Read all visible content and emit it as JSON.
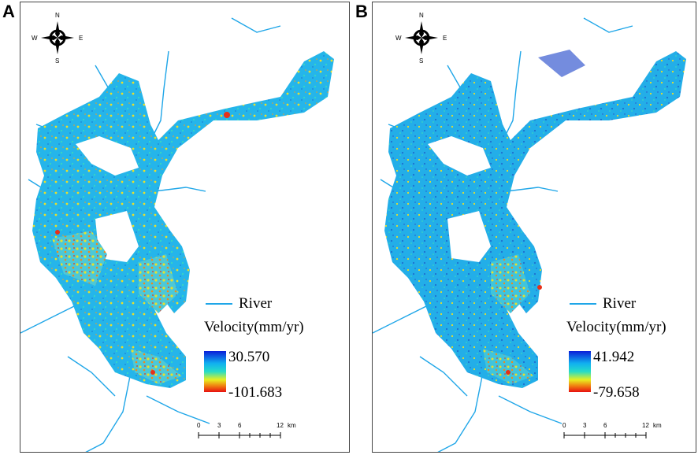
{
  "panels": [
    {
      "letter": "A",
      "compass": {
        "n": "N",
        "s": "S",
        "w": "W",
        "e": "E"
      },
      "legend": {
        "river_label": "River",
        "title": "Velocity(mm/yr)",
        "max": "30.570",
        "min": "-101.683"
      },
      "scale": {
        "ticks": [
          "0",
          "3",
          "6",
          "12"
        ],
        "unit": "km"
      }
    },
    {
      "letter": "B",
      "compass": {
        "n": "N",
        "s": "S",
        "w": "W",
        "e": "E"
      },
      "legend": {
        "river_label": "River",
        "title": "Velocity(mm/yr)",
        "max": "41.942",
        "min": "-79.658"
      },
      "scale": {
        "ticks": [
          "0",
          "3",
          "6",
          "12"
        ],
        "unit": "km"
      }
    }
  ],
  "colors": {
    "river": "#1fa6e8",
    "ramp": [
      "#0a1ed8",
      "#10b0f0",
      "#26dcc8",
      "#e8f020",
      "#f08010",
      "#e81010"
    ],
    "area_base": "#25b5ea",
    "subsidence_hot": "#e9e02a",
    "subsidence_max": "#e83018",
    "uplift": "#1840c8"
  }
}
